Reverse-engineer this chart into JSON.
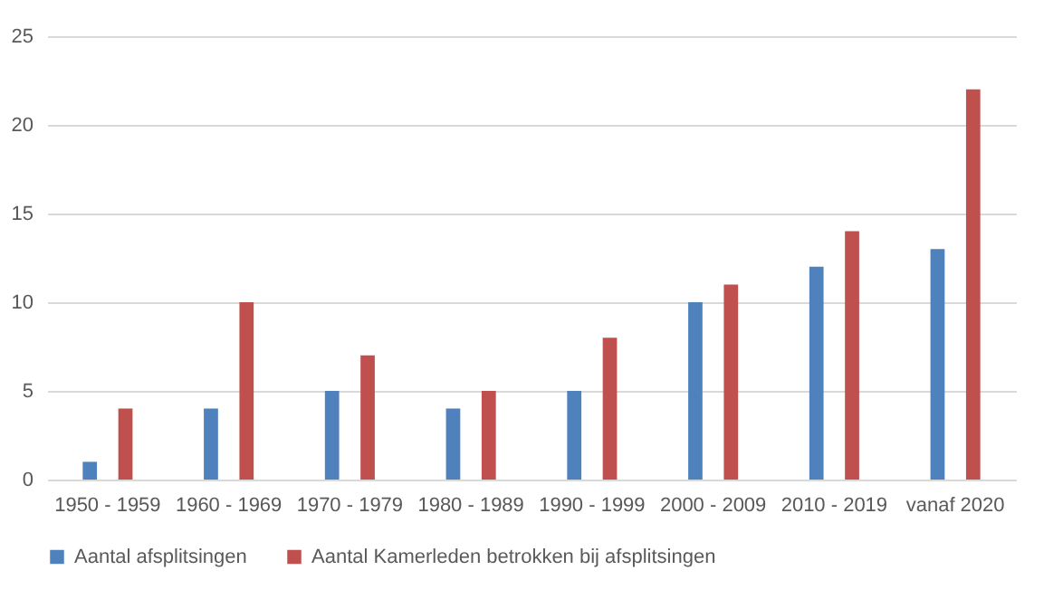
{
  "chart_data": {
    "type": "bar",
    "categories": [
      "1950 - 1959",
      "1960 - 1969",
      "1970 - 1979",
      "1980 - 1989",
      "1990 - 1999",
      "2000 - 2009",
      "2010 - 2019",
      "vanaf 2020"
    ],
    "series": [
      {
        "name": "Aantal afsplitsingen",
        "color": "#4f81bd",
        "values": [
          1,
          4,
          5,
          4,
          5,
          10,
          12,
          13
        ]
      },
      {
        "name": "Aantal Kamerleden betrokken bij afsplitsingen",
        "color": "#c0504d",
        "values": [
          4,
          10,
          7,
          5,
          8,
          11,
          14,
          22
        ]
      }
    ],
    "ylim": [
      0,
      25
    ],
    "yticks": [
      0,
      5,
      10,
      15,
      20,
      25
    ],
    "grid": "y",
    "legend": "bottom"
  }
}
